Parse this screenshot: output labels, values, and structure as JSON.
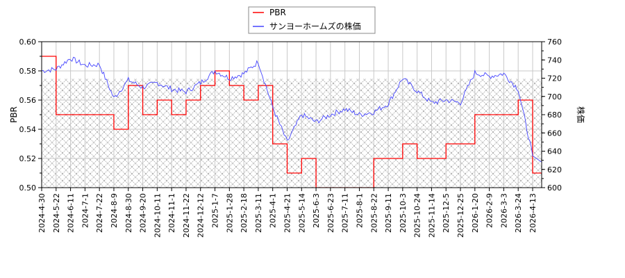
{
  "legend": {
    "items": [
      {
        "label": "PBR",
        "color": "#ff0000"
      },
      {
        "label": "サンヨーホームズの株価",
        "color": "#4444ff"
      }
    ]
  },
  "axes": {
    "left_label": "PBR",
    "right_label": "株価",
    "left_ticks": [
      "0.60",
      "0.58",
      "0.56",
      "0.54",
      "0.52",
      "0.50"
    ],
    "right_ticks": [
      "760",
      "740",
      "720",
      "700",
      "680",
      "660",
      "640",
      "620",
      "600"
    ],
    "x_ticks": [
      "2024-4-30",
      "2024-5-22",
      "2024-6-11",
      "2024-7-1",
      "2024-7-22",
      "2024-8-9",
      "2024-8-30",
      "2024-9-20",
      "2024-10-11",
      "2024-11-1",
      "2024-11-22",
      "2024-12-12",
      "2025-1-7",
      "2025-1-28",
      "2025-2-18",
      "2025-3-11",
      "2025-4-1",
      "2025-4-21",
      "2025-5-14",
      "2025-6-3",
      "2025-6-23",
      "2025-7-11",
      "2025-8-1",
      "2025-8-22",
      "2025-9-11",
      "2025-10-3",
      "2025-10-24",
      "2025-11-14",
      "2025-12-5",
      "2025-12-25",
      "2026-1-20",
      "2026-2-9",
      "2026-3-3",
      "2026-3-24",
      "2026-4-13"
    ]
  },
  "chart_data": {
    "type": "line",
    "title": "",
    "xlabel": "",
    "ylabel": "PBR",
    "ylabel_right": "株価",
    "ylim": [
      0.5,
      0.6
    ],
    "ylim_right": [
      600,
      760
    ],
    "grid": true,
    "legend_position": "top-center",
    "hatched_band_right_axis": [
      600,
      720
    ],
    "x": [
      "2024-4-30",
      "2024-5-22",
      "2024-6-11",
      "2024-7-1",
      "2024-7-22",
      "2024-8-9",
      "2024-8-30",
      "2024-9-20",
      "2024-10-11",
      "2024-11-1",
      "2024-11-22",
      "2024-12-12",
      "2025-1-7",
      "2025-1-28",
      "2025-2-18",
      "2025-3-11",
      "2025-4-1",
      "2025-4-21",
      "2025-5-14",
      "2025-6-3",
      "2025-6-23",
      "2025-7-11",
      "2025-8-1",
      "2025-8-22",
      "2025-9-11",
      "2025-10-3",
      "2025-10-24",
      "2025-11-14",
      "2025-12-5",
      "2025-12-25",
      "2026-1-20",
      "2026-2-9",
      "2026-3-3",
      "2026-3-24",
      "2026-4-13"
    ],
    "series": [
      {
        "name": "PBR",
        "axis": "left",
        "color": "#ff0000",
        "values": [
          0.59,
          0.55,
          0.55,
          0.55,
          0.55,
          0.54,
          0.57,
          0.55,
          0.56,
          0.55,
          0.56,
          0.57,
          0.58,
          0.57,
          0.56,
          0.57,
          0.53,
          0.51,
          0.52,
          0.5,
          0.5,
          0.5,
          0.5,
          0.52,
          0.52,
          0.53,
          0.52,
          0.52,
          0.53,
          0.53,
          0.55,
          0.55,
          0.55,
          0.56,
          0.51
        ]
      },
      {
        "name": "サンヨーホームズの株価",
        "axis": "right",
        "color": "#4444ff",
        "values": [
          728,
          730,
          742,
          734,
          735,
          698,
          718,
          710,
          715,
          708,
          705,
          715,
          728,
          720,
          725,
          738,
          688,
          650,
          680,
          672,
          680,
          686,
          680,
          683,
          692,
          720,
          706,
          693,
          696,
          693,
          726,
          722,
          725,
          708,
          635
        ]
      }
    ]
  }
}
